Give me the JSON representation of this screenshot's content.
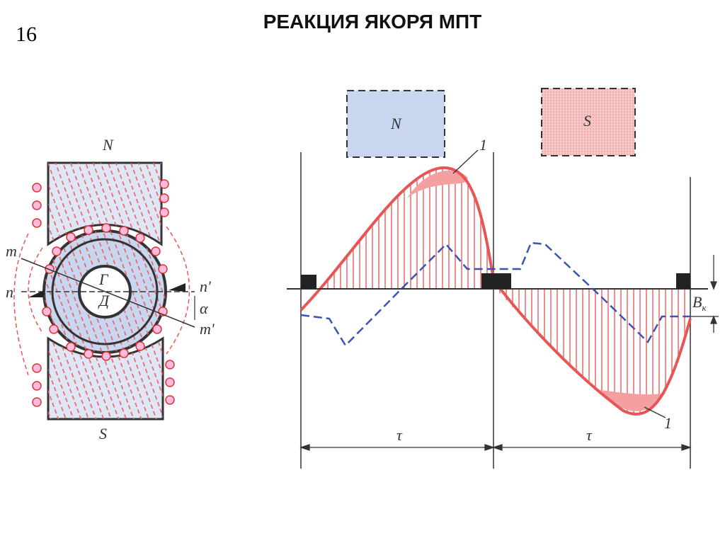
{
  "page_number": "16",
  "title": "РЕАКЦИЯ ЯКОРЯ МПТ",
  "left_figure": {
    "pole_top": "N",
    "pole_bottom": "S",
    "m": "m",
    "n": "n",
    "n_prime": "n'",
    "m_prime": "m'",
    "shaft_top": "Г",
    "shaft_bottom": "Д",
    "angle": "α"
  },
  "right_figure": {
    "pole_n": "N",
    "pole_s": "S",
    "curve_label_top": "1",
    "curve_label_bottom": "1",
    "tau_left": "τ",
    "tau_right": "τ",
    "b": "B",
    "b_sub": "к"
  }
}
